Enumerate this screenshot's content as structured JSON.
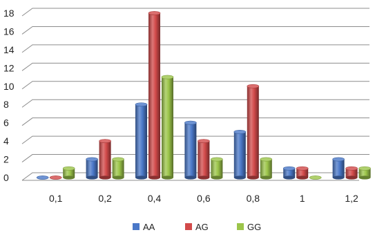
{
  "chart_data": {
    "type": "bar",
    "categories": [
      "0,1",
      "0,2",
      "0,4",
      "0,6",
      "0,8",
      "1",
      "1,2"
    ],
    "series": [
      {
        "name": "AA",
        "values": [
          0,
          2,
          8,
          6,
          5,
          1,
          2
        ]
      },
      {
        "name": "AG",
        "values": [
          0,
          4,
          18,
          4,
          10,
          1,
          1
        ]
      },
      {
        "name": "GG",
        "values": [
          1,
          2,
          11,
          2,
          2,
          0,
          1
        ]
      }
    ],
    "y_ticks": [
      "0",
      "2",
      "4",
      "6",
      "8",
      "10",
      "12",
      "14",
      "16",
      "18"
    ],
    "ylim": [
      0,
      18
    ],
    "grid": true,
    "legend_position": "bottom",
    "style": "3d-cylinder",
    "colors": {
      "AA": "#4a78c8",
      "AG": "#d24a4a",
      "GG": "#9cc54a",
      "grid": "#8c8c8c",
      "text": "#222222"
    }
  }
}
